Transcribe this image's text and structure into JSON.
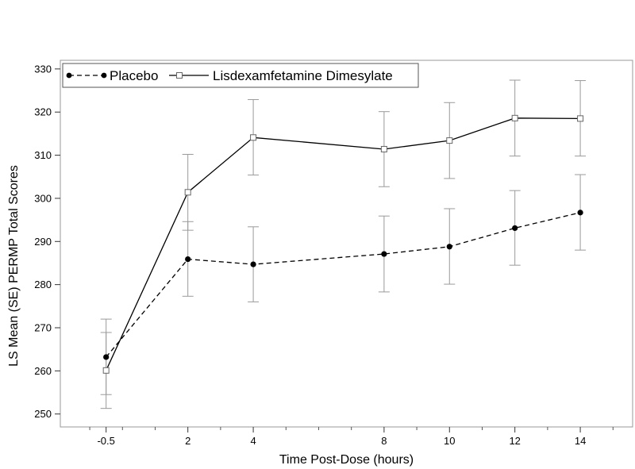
{
  "chart_data": {
    "type": "line",
    "xlabel": "Time Post-Dose (hours)",
    "ylabel": "LS Mean (SE) PERMP Total Scores",
    "xlim": [
      -1.9,
      15.6
    ],
    "ylim": [
      247,
      332
    ],
    "x_ticks": [
      -0.5,
      2,
      4,
      8,
      10,
      12,
      14
    ],
    "x_tick_labels": [
      "-0.5",
      "2",
      "4",
      "8",
      "10",
      "12",
      "14"
    ],
    "y_ticks": [
      250,
      260,
      270,
      280,
      290,
      300,
      310,
      320,
      330
    ],
    "y_tick_labels": [
      "250",
      "260",
      "270",
      "280",
      "290",
      "300",
      "310",
      "320",
      "330"
    ],
    "grid": false,
    "legend_position": "top-left",
    "x": [
      -0.5,
      2,
      4,
      8,
      10,
      12,
      14
    ],
    "series": [
      {
        "name": "Placebo",
        "style": "dashed",
        "marker": "filled-circle",
        "color": "#000000",
        "values": [
          263.2,
          285.9,
          284.7,
          287.1,
          288.8,
          293.1,
          296.7
        ],
        "se_lower": [
          254.5,
          277.3,
          276.0,
          278.3,
          280.1,
          284.5,
          288.0
        ],
        "se_upper": [
          272.0,
          294.6,
          293.4,
          295.9,
          297.6,
          301.8,
          305.5
        ]
      },
      {
        "name": "Lisdexamfetamine Dimesylate",
        "style": "solid",
        "marker": "open-square",
        "color": "#000000",
        "values": [
          260.1,
          301.4,
          314.1,
          311.4,
          313.4,
          318.6,
          318.5
        ],
        "se_lower": [
          251.3,
          292.6,
          305.4,
          302.7,
          304.6,
          309.8,
          309.8
        ],
        "se_upper": [
          268.9,
          310.2,
          322.9,
          320.1,
          322.2,
          327.4,
          327.3
        ]
      }
    ]
  }
}
